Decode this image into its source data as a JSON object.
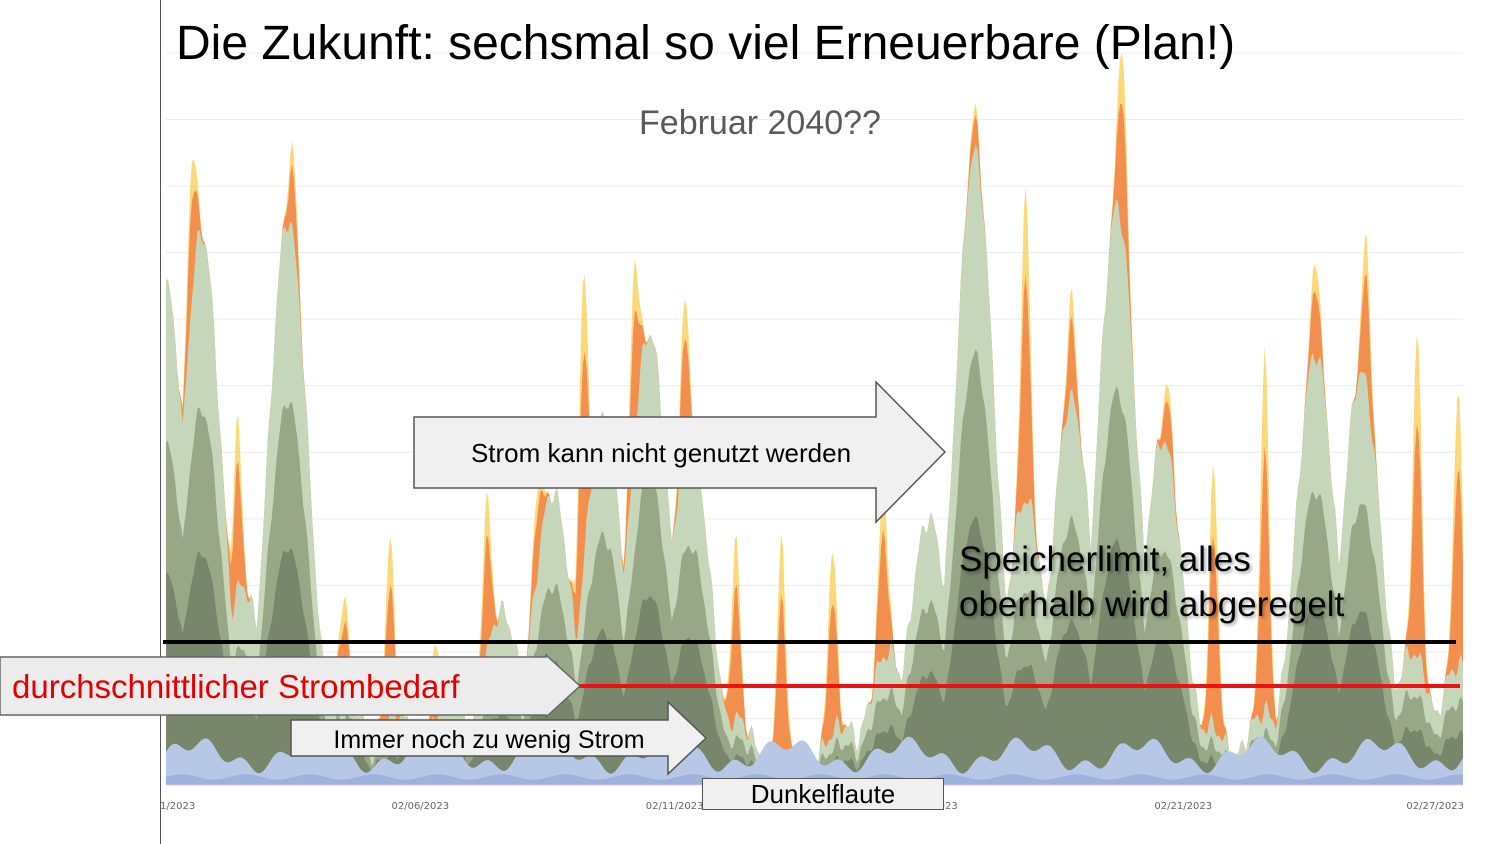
{
  "slide": {
    "title": "Die Zukunft: sechsmal so viel Erneuerbare (Plan!)",
    "subtitle": "Februar 2040??"
  },
  "annotations": {
    "surplus_arrow": "Strom kann nicht genutzt werden",
    "storage_limit_line1": "Speicherlimit, alles",
    "storage_limit_line2": "oberhalb wird abgeregelt",
    "demand_label": "durchschnittlicher Strombedarf",
    "deficit_arrow": "Immer noch zu wenig Strom",
    "dunkelflaute": "Dunkelflaute"
  },
  "colors": {
    "demand_line": "#ee1111",
    "storage_line": "#000000",
    "demand_text": "#e50000",
    "wind_dark": "#5f6b55",
    "wind_mid": "#8fa07e",
    "wind_light": "#c5d6bb",
    "solar_orange": "#f28b4c",
    "solar_yellow": "#fbd46b",
    "base_blue": "#b7c7e6",
    "base_blue_dark": "#9fb1dd"
  },
  "chart_data": {
    "type": "area",
    "title": "",
    "xlabel": "",
    "ylabel": "",
    "x_ticks": [
      "1/2023",
      "02/06/2023",
      "02/11/2023",
      "02/16/2023",
      "02/21/2023",
      "02/27/2023"
    ],
    "x_tick_positions": [
      0,
      5,
      10,
      15,
      20,
      25
    ],
    "xlim": [
      0,
      25.5
    ],
    "ylim": [
      0,
      11
    ],
    "grid": true,
    "reference_lines": [
      {
        "name": "Speicherlimit",
        "value": 2.35
      },
      {
        "name": "durchschnittlicher Strombedarf",
        "value": 1.6
      }
    ],
    "wind_peaks": [
      {
        "x": 0.0,
        "h": 7.5
      },
      {
        "x": 0.7,
        "h": 8.3
      },
      {
        "x": 1.5,
        "h": 3.0
      },
      {
        "x": 2.4,
        "h": 8.5
      },
      {
        "x": 3.5,
        "h": 1.5
      },
      {
        "x": 4.5,
        "h": 1.1
      },
      {
        "x": 5.6,
        "h": 1.3
      },
      {
        "x": 6.6,
        "h": 2.6
      },
      {
        "x": 7.6,
        "h": 4.4
      },
      {
        "x": 8.6,
        "h": 5.5
      },
      {
        "x": 9.5,
        "h": 6.8
      },
      {
        "x": 10.3,
        "h": 5.3
      },
      {
        "x": 11.2,
        "h": 1.0
      },
      {
        "x": 12.3,
        "h": 0.4
      },
      {
        "x": 13.3,
        "h": 0.9
      },
      {
        "x": 14.2,
        "h": 2.0
      },
      {
        "x": 15.0,
        "h": 4.0
      },
      {
        "x": 15.9,
        "h": 9.5
      },
      {
        "x": 16.9,
        "h": 4.3
      },
      {
        "x": 17.8,
        "h": 5.8
      },
      {
        "x": 18.7,
        "h": 8.7
      },
      {
        "x": 19.6,
        "h": 5.2
      },
      {
        "x": 20.5,
        "h": 0.9
      },
      {
        "x": 21.6,
        "h": 1.1
      },
      {
        "x": 22.6,
        "h": 6.5
      },
      {
        "x": 23.5,
        "h": 6.2
      },
      {
        "x": 24.5,
        "h": 2.0
      },
      {
        "x": 25.4,
        "h": 1.8
      }
    ],
    "solar_peaks": [
      {
        "x": 0.5,
        "h": 9.3
      },
      {
        "x": 2.5,
        "h": 9.6
      },
      {
        "x": 1.4,
        "h": 5.6
      },
      {
        "x": 3.5,
        "h": 2.8
      },
      {
        "x": 4.4,
        "h": 3.7
      },
      {
        "x": 5.3,
        "h": 2.1
      },
      {
        "x": 6.3,
        "h": 4.4
      },
      {
        "x": 7.3,
        "h": 4.4
      },
      {
        "x": 8.2,
        "h": 7.6
      },
      {
        "x": 9.2,
        "h": 7.8
      },
      {
        "x": 10.2,
        "h": 7.3
      },
      {
        "x": 11.2,
        "h": 3.8
      },
      {
        "x": 12.1,
        "h": 3.8
      },
      {
        "x": 13.1,
        "h": 3.5
      },
      {
        "x": 14.1,
        "h": 4.6
      },
      {
        "x": 15.0,
        "h": 3.8
      },
      {
        "x": 15.9,
        "h": 10.2
      },
      {
        "x": 16.9,
        "h": 9.0
      },
      {
        "x": 17.8,
        "h": 7.5
      },
      {
        "x": 18.8,
        "h": 11.0
      },
      {
        "x": 19.7,
        "h": 6.0
      },
      {
        "x": 20.6,
        "h": 4.8
      },
      {
        "x": 21.6,
        "h": 6.6
      },
      {
        "x": 22.6,
        "h": 7.8
      },
      {
        "x": 23.6,
        "h": 8.3
      },
      {
        "x": 24.6,
        "h": 6.8
      },
      {
        "x": 25.4,
        "h": 5.9
      }
    ]
  }
}
